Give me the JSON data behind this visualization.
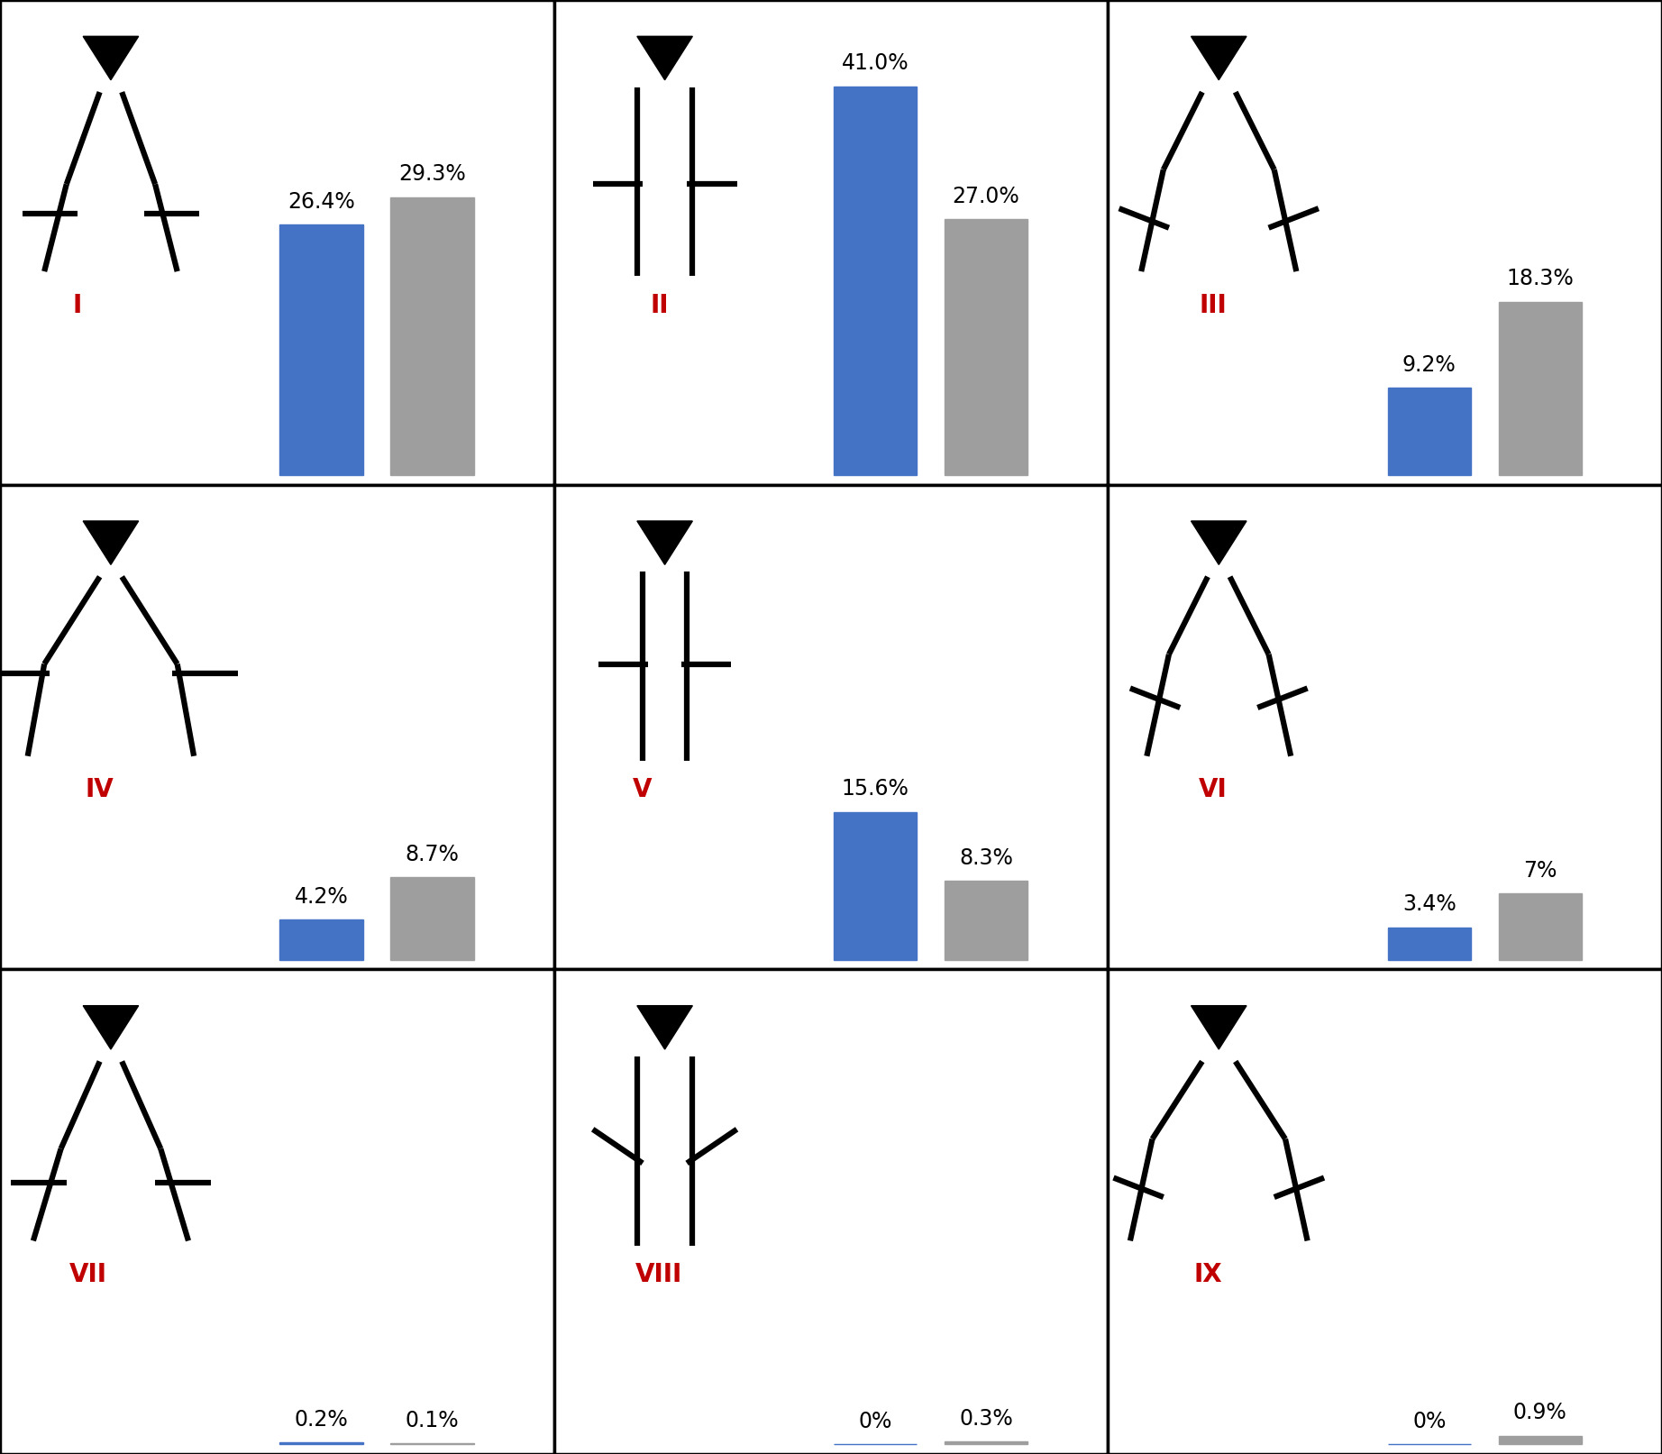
{
  "panels": [
    {
      "label": "I",
      "healthy": 26.4,
      "oa": 29.3,
      "oa_label": "29.3%",
      "h_label": "26.4%"
    },
    {
      "label": "II",
      "healthy": 41.0,
      "oa": 27.0,
      "oa_label": "27.0%",
      "h_label": "41.0%"
    },
    {
      "label": "III",
      "healthy": 9.2,
      "oa": 18.3,
      "oa_label": "18.3%",
      "h_label": "9.2%"
    },
    {
      "label": "IV",
      "healthy": 4.2,
      "oa": 8.7,
      "oa_label": "8.7%",
      "h_label": "4.2%"
    },
    {
      "label": "V",
      "healthy": 15.6,
      "oa": 8.3,
      "oa_label": "8.3%",
      "h_label": "15.6%"
    },
    {
      "label": "VI",
      "healthy": 3.4,
      "oa": 7.0,
      "oa_label": "7%",
      "h_label": "3.4%"
    },
    {
      "label": "VII",
      "healthy": 0.2,
      "oa": 0.1,
      "oa_label": "0.1%",
      "h_label": "0.2%"
    },
    {
      "label": "VIII",
      "healthy": 0.0,
      "oa": 0.3,
      "oa_label": "0.3%",
      "h_label": "0%"
    },
    {
      "label": "IX",
      "healthy": 0.0,
      "oa": 0.9,
      "oa_label": "0.9%",
      "h_label": "0%"
    }
  ],
  "blue_color": "#4472C4",
  "gray_color": "#9E9E9E",
  "max_val": 45,
  "roman_color": "#C00000",
  "background": "#FFFFFF",
  "lw": 4.5,
  "tri_color": "#000000"
}
